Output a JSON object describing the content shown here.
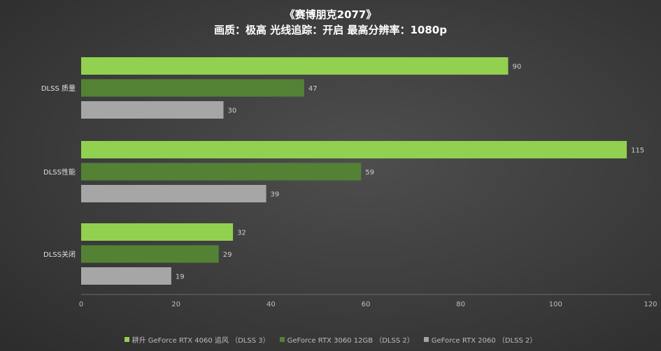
{
  "chart_data": {
    "type": "bar",
    "orientation": "horizontal",
    "title": "《赛博朋克2077》",
    "subtitle": "画质：极高  光线追踪：开启  最高分辨率：1080p",
    "categories": [
      "DLSS 质量",
      "DLSS性能",
      "DLSS关闭"
    ],
    "series": [
      {
        "name": "耕升 GeForce RTX 4060 追风 （DLSS 3）",
        "color": "#92d050",
        "values": [
          90,
          115,
          32
        ]
      },
      {
        "name": "GeForce RTX 3060 12GB （DLSS 2）",
        "color": "#548235",
        "values": [
          47,
          59,
          29
        ]
      },
      {
        "name": "GeForce RTX 2060 （DLSS 2）",
        "color": "#a6a6a6",
        "values": [
          30,
          39,
          19
        ]
      }
    ],
    "xlim": [
      0,
      120
    ],
    "xticks": [
      0,
      20,
      40,
      60,
      80,
      100,
      120
    ],
    "grid": false,
    "legend": "bottom"
  }
}
